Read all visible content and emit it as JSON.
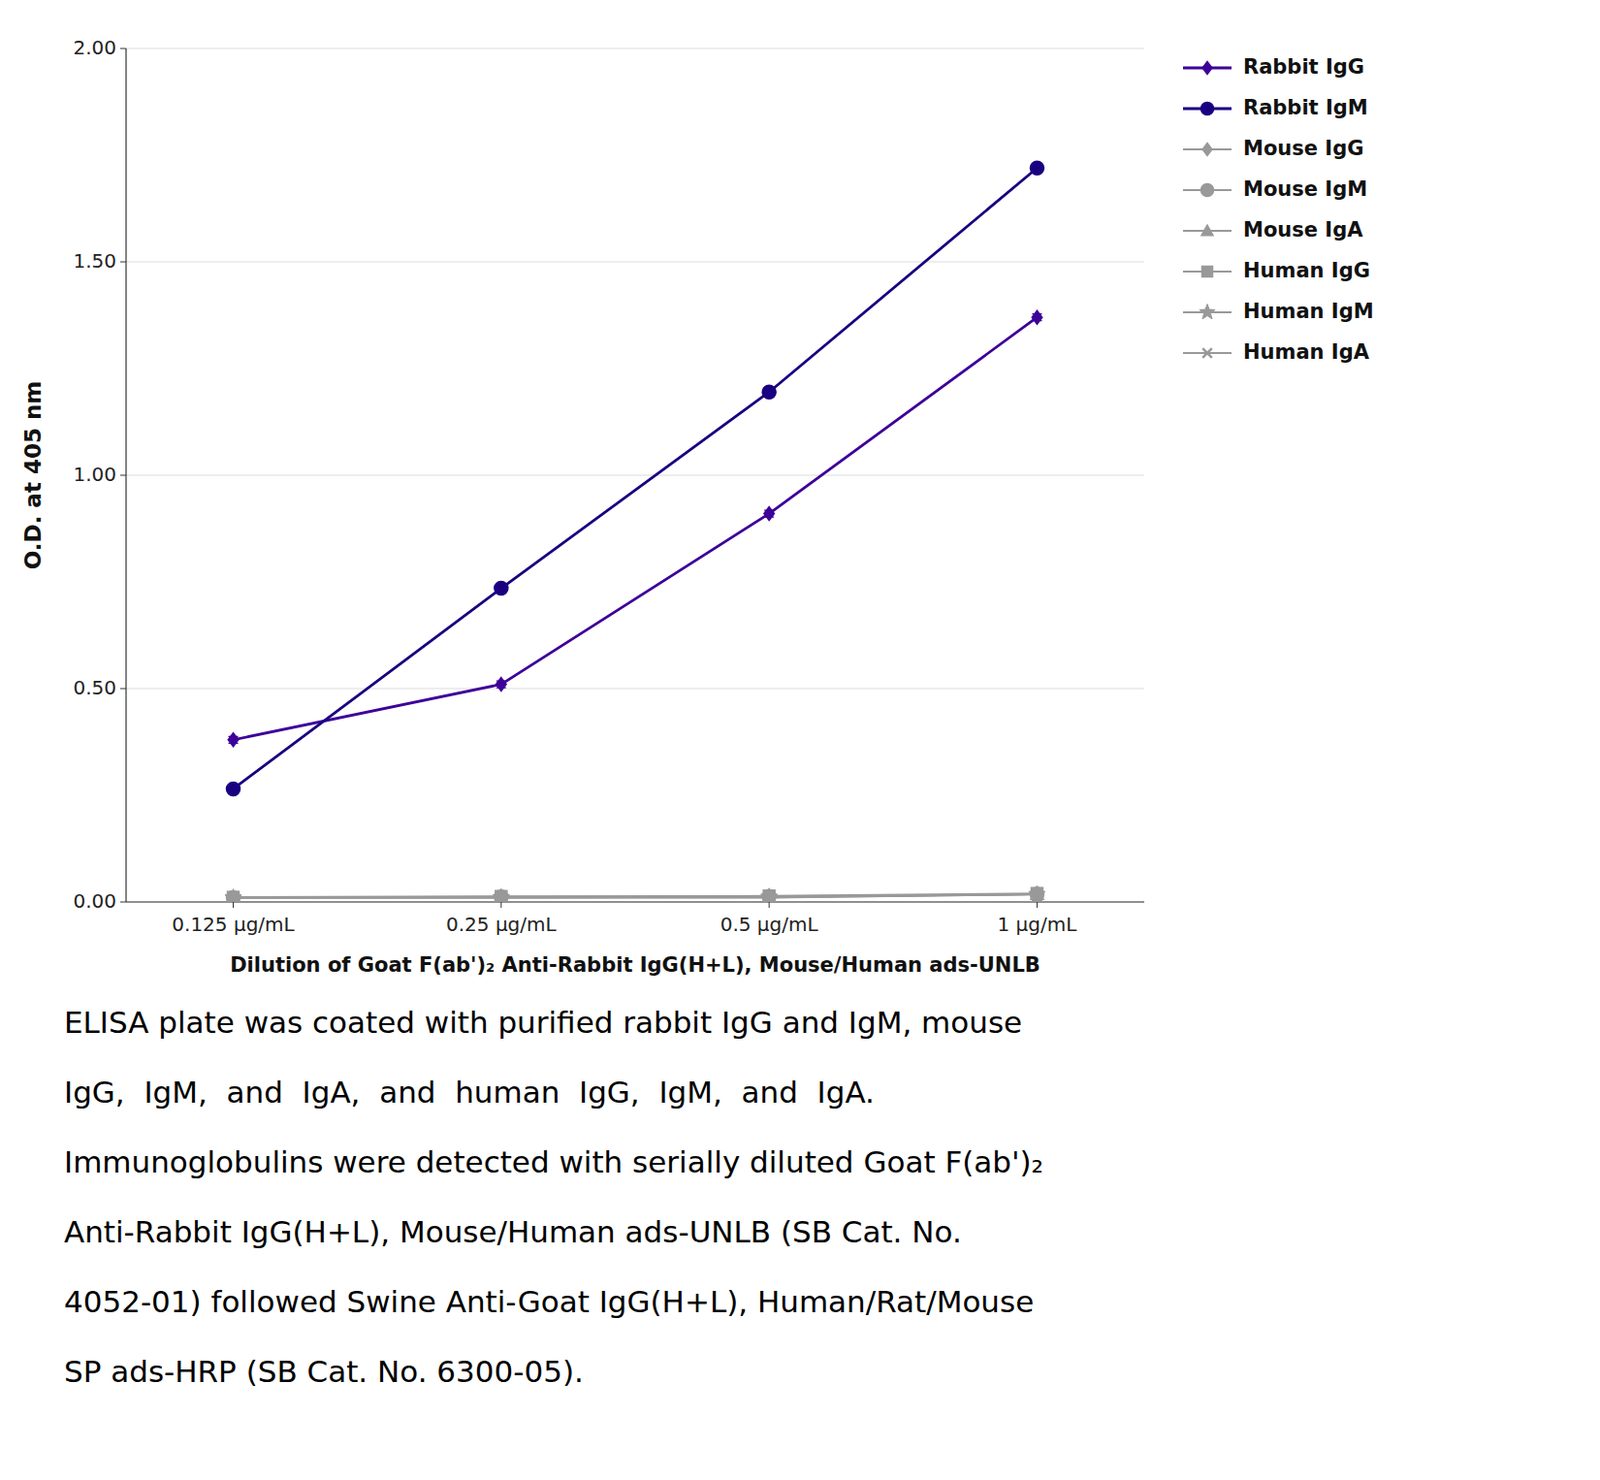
{
  "chart_data": {
    "type": "line",
    "xlabel": "Dilution of Goat F(ab')₂ Anti-Rabbit IgG(H+L), Mouse/Human ads-UNLB",
    "ylabel": "O.D. at 405 nm",
    "categories": [
      "0.125 μg/mL",
      "0.25 μg/mL",
      "0.5 μg/mL",
      "1 μg/mL"
    ],
    "ylim": [
      0.0,
      2.0
    ],
    "yticks": [
      {
        "value": 0.0,
        "label": "0.00"
      },
      {
        "value": 0.5,
        "label": "0.50"
      },
      {
        "value": 1.0,
        "label": "1.00"
      },
      {
        "value": 1.5,
        "label": "1.50"
      },
      {
        "value": 2.0,
        "label": "2.00"
      }
    ],
    "grid": true,
    "legend": "right",
    "series": [
      {
        "name": "Rabbit IgG",
        "color": "#3d0099",
        "marker": "diamond",
        "values": [
          0.38,
          0.51,
          0.91,
          1.37
        ],
        "errors": [
          0.008,
          0.008,
          0.008,
          0.008
        ]
      },
      {
        "name": "Rabbit IgM",
        "color": "#1a0080",
        "marker": "circle",
        "values": [
          0.265,
          0.735,
          1.195,
          1.72
        ],
        "errors": [
          0.008,
          0.008,
          0.01,
          0.01
        ]
      },
      {
        "name": "Mouse IgG",
        "color": "#999999",
        "marker": "diamond",
        "values": [
          0.01,
          0.01,
          0.01,
          0.018
        ],
        "errors": [
          0.002,
          0.002,
          0.002,
          0.002
        ]
      },
      {
        "name": "Mouse IgM",
        "color": "#999999",
        "marker": "circle",
        "values": [
          0.01,
          0.012,
          0.013,
          0.018
        ],
        "errors": [
          0.002,
          0.002,
          0.002,
          0.002
        ]
      },
      {
        "name": "Mouse IgA",
        "color": "#999999",
        "marker": "triangle",
        "values": [
          0.01,
          0.011,
          0.012,
          0.018
        ],
        "errors": [
          0.002,
          0.002,
          0.002,
          0.002
        ]
      },
      {
        "name": "Human IgG",
        "color": "#999999",
        "marker": "square",
        "values": [
          0.011,
          0.013,
          0.014,
          0.02
        ],
        "errors": [
          0.002,
          0.002,
          0.002,
          0.002
        ]
      },
      {
        "name": "Human IgM",
        "color": "#999999",
        "marker": "star",
        "values": [
          0.01,
          0.011,
          0.012,
          0.018
        ],
        "errors": [
          0.002,
          0.002,
          0.002,
          0.002
        ]
      },
      {
        "name": "Human IgA",
        "color": "#999999",
        "marker": "x",
        "values": [
          0.01,
          0.01,
          0.011,
          0.018
        ],
        "errors": [
          0.002,
          0.002,
          0.002,
          0.002
        ]
      }
    ],
    "annotations": [
      "ELISA plate was coated with purified rabbit IgG and IgM, mouse",
      "IgG,  IgM,  and  IgA,  and  human  IgG,  IgM,  and  IgA.",
      "Immunoglobulins were detected with serially diluted Goat F(ab')₂",
      "Anti-Rabbit IgG(H+L), Mouse/Human ads-UNLB (SB Cat. No.",
      "4052-01) followed Swine Anti-Goat IgG(H+L), Human/Rat/Mouse",
      "SP ads-HRP (SB Cat. No. 6300-05)."
    ]
  }
}
